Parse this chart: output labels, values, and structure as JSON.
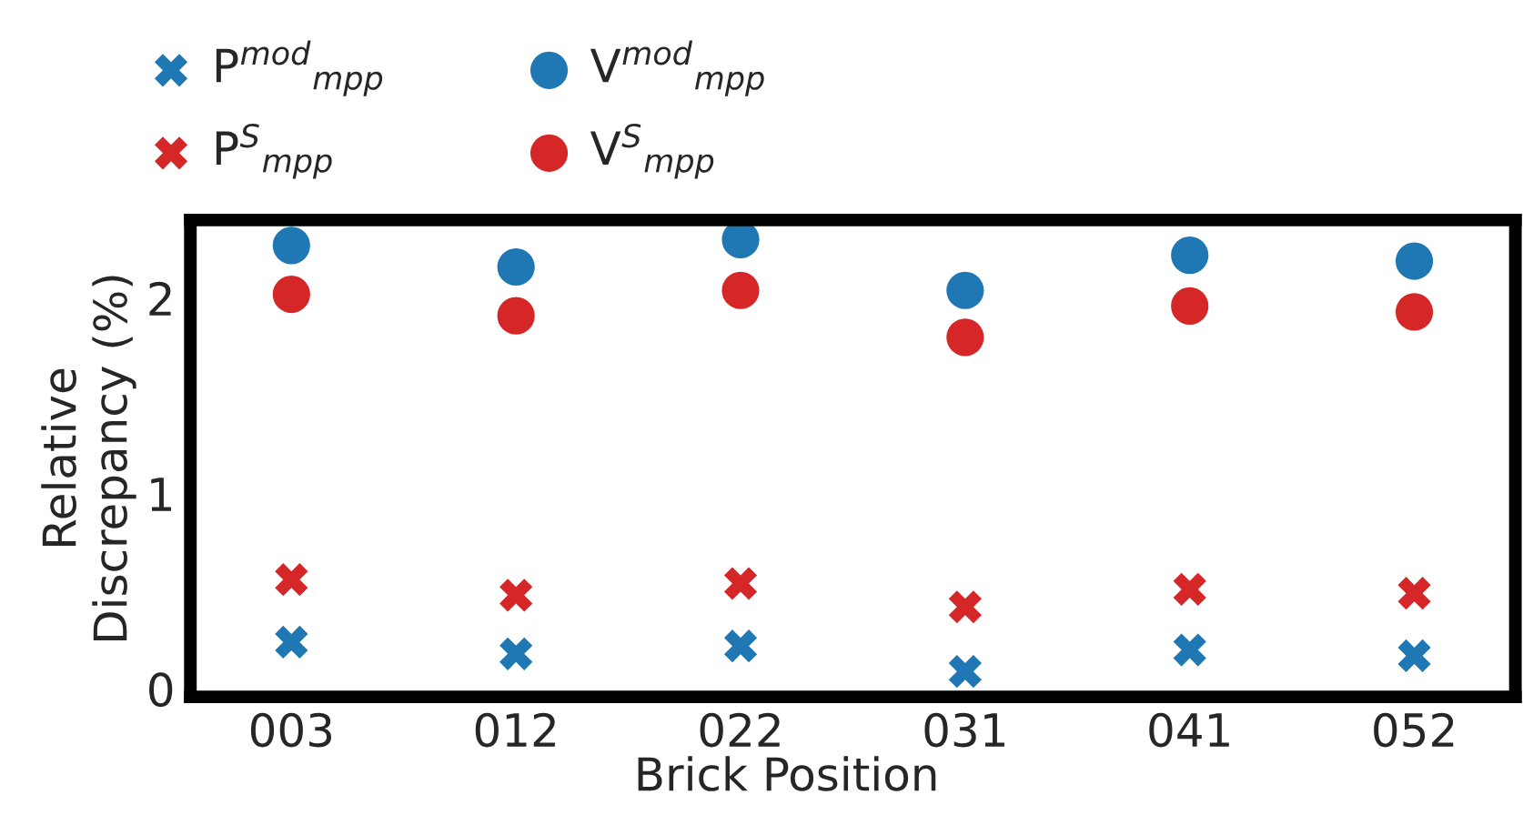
{
  "chart_data": {
    "type": "scatter",
    "xlabel": "Brick Position",
    "ylabel": "Relative\nDiscrepancy (%)",
    "categories": [
      "003",
      "012",
      "022",
      "031",
      "041",
      "052"
    ],
    "series": [
      {
        "name": "P$^{mod}$$_{mpp}$",
        "color": "#1f77b4",
        "marker": "cross",
        "values": [
          0.24,
          0.18,
          0.22,
          0.09,
          0.2,
          0.17
        ]
      },
      {
        "name": "P$^{S}$$_{mpp}$",
        "color": "#d62728",
        "marker": "cross",
        "values": [
          0.56,
          0.48,
          0.54,
          0.42,
          0.51,
          0.49
        ]
      },
      {
        "name": "V$^{mod}$$_{mpp}$",
        "color": "#1f77b4",
        "marker": "circle",
        "values": [
          2.27,
          2.16,
          2.3,
          2.04,
          2.22,
          2.19
        ]
      },
      {
        "name": "V$^{S}$$_{mpp}$",
        "color": "#d62728",
        "marker": "circle",
        "values": [
          2.02,
          1.91,
          2.04,
          1.8,
          1.96,
          1.93
        ]
      }
    ],
    "ylim": [
      -0.04,
      2.4
    ],
    "yticks": [
      0,
      1,
      2
    ],
    "grid": false,
    "legend": "top"
  }
}
